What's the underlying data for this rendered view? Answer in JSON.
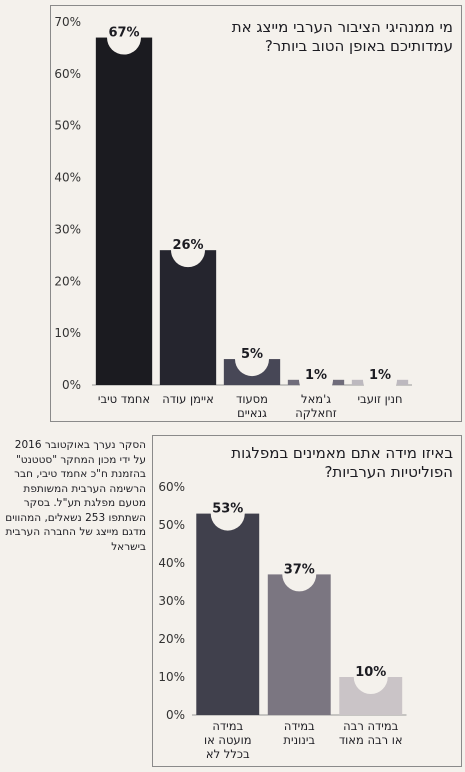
{
  "chart_data": [
    {
      "type": "bar",
      "title": "מי ממנהיגי הציבור הערבי מייצג את עמדותיכם באופן הטוב ביותר?",
      "categories": [
        "אחמד טיבי",
        "איימן עודה",
        "מסעוד גנאיים",
        "ג'מאל זחאלקה",
        "חנין זועבי"
      ],
      "values": [
        67,
        26,
        5,
        1,
        1
      ],
      "value_labels": [
        "67%",
        "26%",
        "5%",
        "1%",
        "1%"
      ],
      "colors": [
        "#1b1b20",
        "#25252e",
        "#474756",
        "#6f6c7a",
        "#bdb9bf"
      ],
      "ylim": [
        0,
        70
      ],
      "yticks": [
        {
          "value": 0,
          "label": "0%"
        },
        {
          "value": 10,
          "label": "10%"
        },
        {
          "value": 20,
          "label": "20%"
        },
        {
          "value": 30,
          "label": "30%"
        },
        {
          "value": 40,
          "label": "40%"
        },
        {
          "value": 50,
          "label": "50%"
        },
        {
          "value": 60,
          "label": "60%"
        },
        {
          "value": 70,
          "label": "70%"
        }
      ]
    },
    {
      "type": "bar",
      "title": "באיזו מידה אתם מאמינים במפלגות הפוליטיות הערביות?",
      "categories": [
        "במידה מועטה או בכלל לא",
        "במידה בינונית",
        "במידה רבה או רבה מאוד"
      ],
      "values": [
        53,
        37,
        10
      ],
      "value_labels": [
        "53%",
        "37%",
        "10%"
      ],
      "colors": [
        "#40404c",
        "#7b7681",
        "#cac4c7"
      ],
      "ylim": [
        0,
        60
      ],
      "yticks": [
        {
          "value": 0,
          "label": "0%"
        },
        {
          "value": 10,
          "label": "10%"
        },
        {
          "value": 20,
          "label": "20%"
        },
        {
          "value": 30,
          "label": "30%"
        },
        {
          "value": 40,
          "label": "40%"
        },
        {
          "value": 50,
          "label": "50%"
        },
        {
          "value": 60,
          "label": "60%"
        }
      ]
    }
  ],
  "note": "הסקר נערך באוקטובר 2016 על ידי מכון המחקר \"סטטנט\" בהזמנת ח\"כ אחמד טיבי, חבר הרשימה הערבית המשותפת מטעם מפלגת תע\"ל. בסקר השתתפו 253 נשאלים, המהווים מדגם מייצג של החברה הערבית בישראל"
}
